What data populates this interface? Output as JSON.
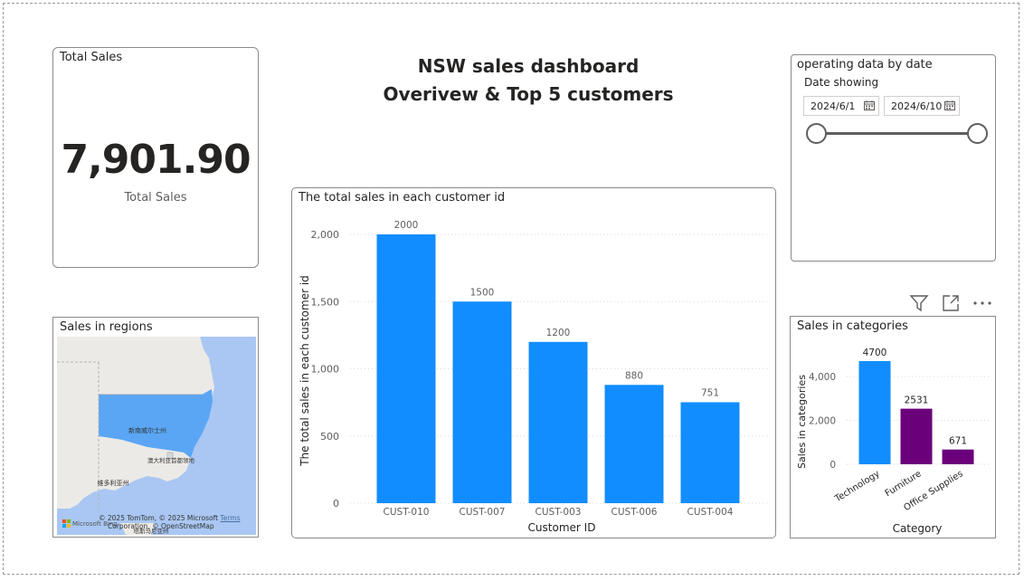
{
  "dashboard": {
    "title_line1": "NSW sales dashboard",
    "title_line2": "Overivew & Top 5 customers"
  },
  "kpi": {
    "card_title": "Total Sales",
    "value": "7,901.90",
    "label": "Total Sales"
  },
  "slicer": {
    "title": "operating data by date",
    "header": "Date showing",
    "start_date": "2024/6/1",
    "end_date": "2024/6/10",
    "range_fraction": [
      0,
      1
    ]
  },
  "map": {
    "title": "Sales in regions",
    "region_labels": [
      "新南威尔士州",
      "澳大利亚首都领地",
      "维多利亚州",
      "塔斯马尼亚州"
    ],
    "credit_line1": "© 2025 TomTom, © 2025 Microsoft",
    "credit_terms": "Terms",
    "credit_line2": "Corporation, © OpenStreetMap",
    "logo_text": "Microsoft Bing",
    "highlight_color": "#5aa6f5"
  },
  "visual_toolbar": {
    "icons": [
      "filter-icon",
      "focus-mode-icon",
      "more-options-icon"
    ]
  },
  "chart_data": [
    {
      "type": "bar",
      "title": "The total sales in each customer id",
      "xlabel": "Customer ID",
      "ylabel": "The total sales in each customer id",
      "categories": [
        "CUST-010",
        "CUST-007",
        "CUST-003",
        "CUST-006",
        "CUST-004"
      ],
      "values": [
        2000,
        1500,
        1200,
        880,
        751
      ],
      "data_labels": [
        "2000",
        "1500",
        "1200",
        "880",
        "751"
      ],
      "yticks": [
        0,
        500,
        1000,
        1500,
        2000
      ],
      "ytick_labels": [
        "0",
        "500",
        "1,000",
        "1,500",
        "2,000"
      ],
      "ylim": [
        0,
        2000
      ],
      "grid": true,
      "color": "#118dff"
    },
    {
      "type": "bar",
      "title": "Sales in categories",
      "xlabel": "Category",
      "ylabel": "Sales in categories",
      "categories": [
        "Technology",
        "Furniture",
        "Office Supplies"
      ],
      "values": [
        4700,
        2531,
        671
      ],
      "data_labels": [
        "4700",
        "2531",
        "671"
      ],
      "colors": [
        "#118dff",
        "#6b007b",
        "#6b007b"
      ],
      "yticks": [
        0,
        2000,
        4000
      ],
      "ytick_labels": [
        "0",
        "2,000",
        "4,000"
      ],
      "ylim": [
        0,
        4700
      ],
      "grid": true
    }
  ]
}
